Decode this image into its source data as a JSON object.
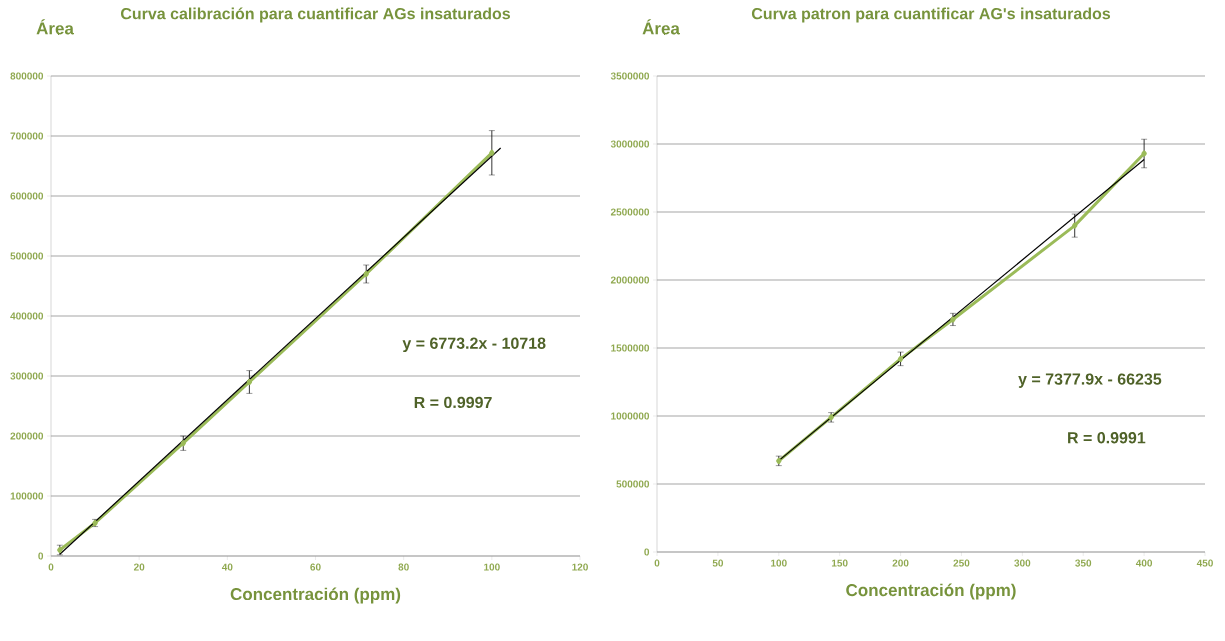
{
  "chart_data": [
    {
      "type": "line",
      "title": "Curva calibración para cuantificar AGs insaturados",
      "xlabel": "Concentración (ppm)",
      "ylabel": "Área",
      "xlim": [
        0,
        120
      ],
      "xticks": [
        0,
        20,
        40,
        60,
        80,
        100,
        120
      ],
      "ylim": [
        0,
        800000
      ],
      "yticks": [
        0,
        100000,
        200000,
        300000,
        400000,
        500000,
        600000,
        700000,
        800000
      ],
      "grid": "y",
      "series": [
        {
          "color": "#9bbb59",
          "marker": "diamond",
          "x": [
            2,
            10,
            30,
            45,
            71.5,
            100
          ],
          "values": [
            10000,
            55000,
            188000,
            290000,
            470000,
            672000
          ],
          "errors": [
            8000,
            6000,
            12000,
            19000,
            15000,
            37000
          ]
        },
        {
          "color": "#000000",
          "marker": "none",
          "x": [
            2,
            102
          ],
          "values": [
            3000,
            680000
          ]
        }
      ],
      "annotations": [
        "y = 6773.2x - 10718",
        "R = 0.9997"
      ]
    },
    {
      "type": "line",
      "title": "Curva patron para cuantificar AG's insaturados",
      "xlabel": "Concentración (ppm)",
      "ylabel": "Área",
      "xlim": [
        0,
        450
      ],
      "xticks": [
        0,
        50,
        100,
        150,
        200,
        250,
        300,
        350,
        400,
        450
      ],
      "ylim": [
        0,
        3500000
      ],
      "yticks": [
        0,
        500000,
        1000000,
        1500000,
        2000000,
        2500000,
        3000000,
        3500000
      ],
      "grid": "y",
      "series": [
        {
          "color": "#9bbb59",
          "marker": "diamond",
          "x": [
            100,
            143,
            200,
            243,
            343,
            400
          ],
          "values": [
            670000,
            990000,
            1420000,
            1710000,
            2400000,
            2930000
          ],
          "errors": [
            35000,
            35000,
            50000,
            45000,
            85000,
            105000
          ]
        },
        {
          "color": "#000000",
          "marker": "none",
          "x": [
            100,
            400
          ],
          "values": [
            672000,
            2886000
          ]
        }
      ],
      "annotations": [
        "y = 7377.9x - 66235",
        "R = 0.9991"
      ]
    }
  ]
}
